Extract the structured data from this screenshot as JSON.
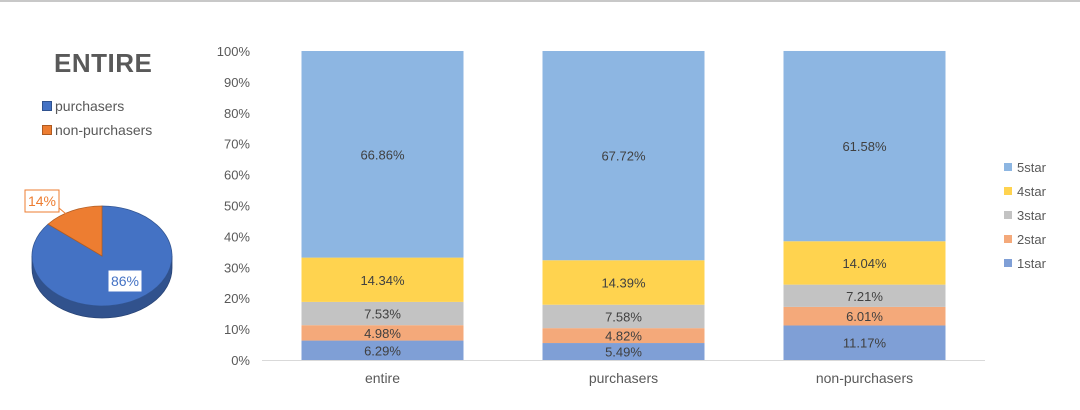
{
  "pie": {
    "title": "ENTIRE",
    "legend": [
      {
        "label": "purchasers",
        "color": "#4472c4"
      },
      {
        "label": "non-purchasers",
        "color": "#ed7d31"
      }
    ],
    "slices": [
      {
        "name": "purchasers",
        "value": 86,
        "label": "86%",
        "color": "#4472c4"
      },
      {
        "name": "non-purchasers",
        "value": 14,
        "label": "14%",
        "color": "#ed7d31"
      }
    ]
  },
  "chart_data": {
    "type": "bar",
    "stacked": true,
    "categories": [
      "entire",
      "purchasers",
      "non-purchasers"
    ],
    "ylim": [
      0,
      100
    ],
    "yticks": [
      "0%",
      "10%",
      "20%",
      "30%",
      "40%",
      "50%",
      "60%",
      "70%",
      "80%",
      "90%",
      "100%"
    ],
    "legend_position": "right",
    "series": [
      {
        "name": "1star",
        "color": "#7f9fd6",
        "values": [
          6.29,
          5.49,
          11.17
        ],
        "labels": [
          "6.29%",
          "5.49%",
          "11.17%"
        ]
      },
      {
        "name": "2star",
        "color": "#f4a97a",
        "values": [
          4.98,
          4.82,
          6.01
        ],
        "labels": [
          "4.98%",
          "4.82%",
          "6.01%"
        ]
      },
      {
        "name": "3star",
        "color": "#c3c3c3",
        "values": [
          7.53,
          7.58,
          7.21
        ],
        "labels": [
          "7.53%",
          "7.58%",
          "7.21%"
        ]
      },
      {
        "name": "4star",
        "color": "#ffd34f",
        "values": [
          14.34,
          14.39,
          14.04
        ],
        "labels": [
          "14.34%",
          "14.39%",
          "14.04%"
        ]
      },
      {
        "name": "5star",
        "color": "#8db6e2",
        "values": [
          66.86,
          67.72,
          61.58
        ],
        "labels": [
          "66.86%",
          "67.72%",
          "61.58%"
        ]
      }
    ]
  }
}
